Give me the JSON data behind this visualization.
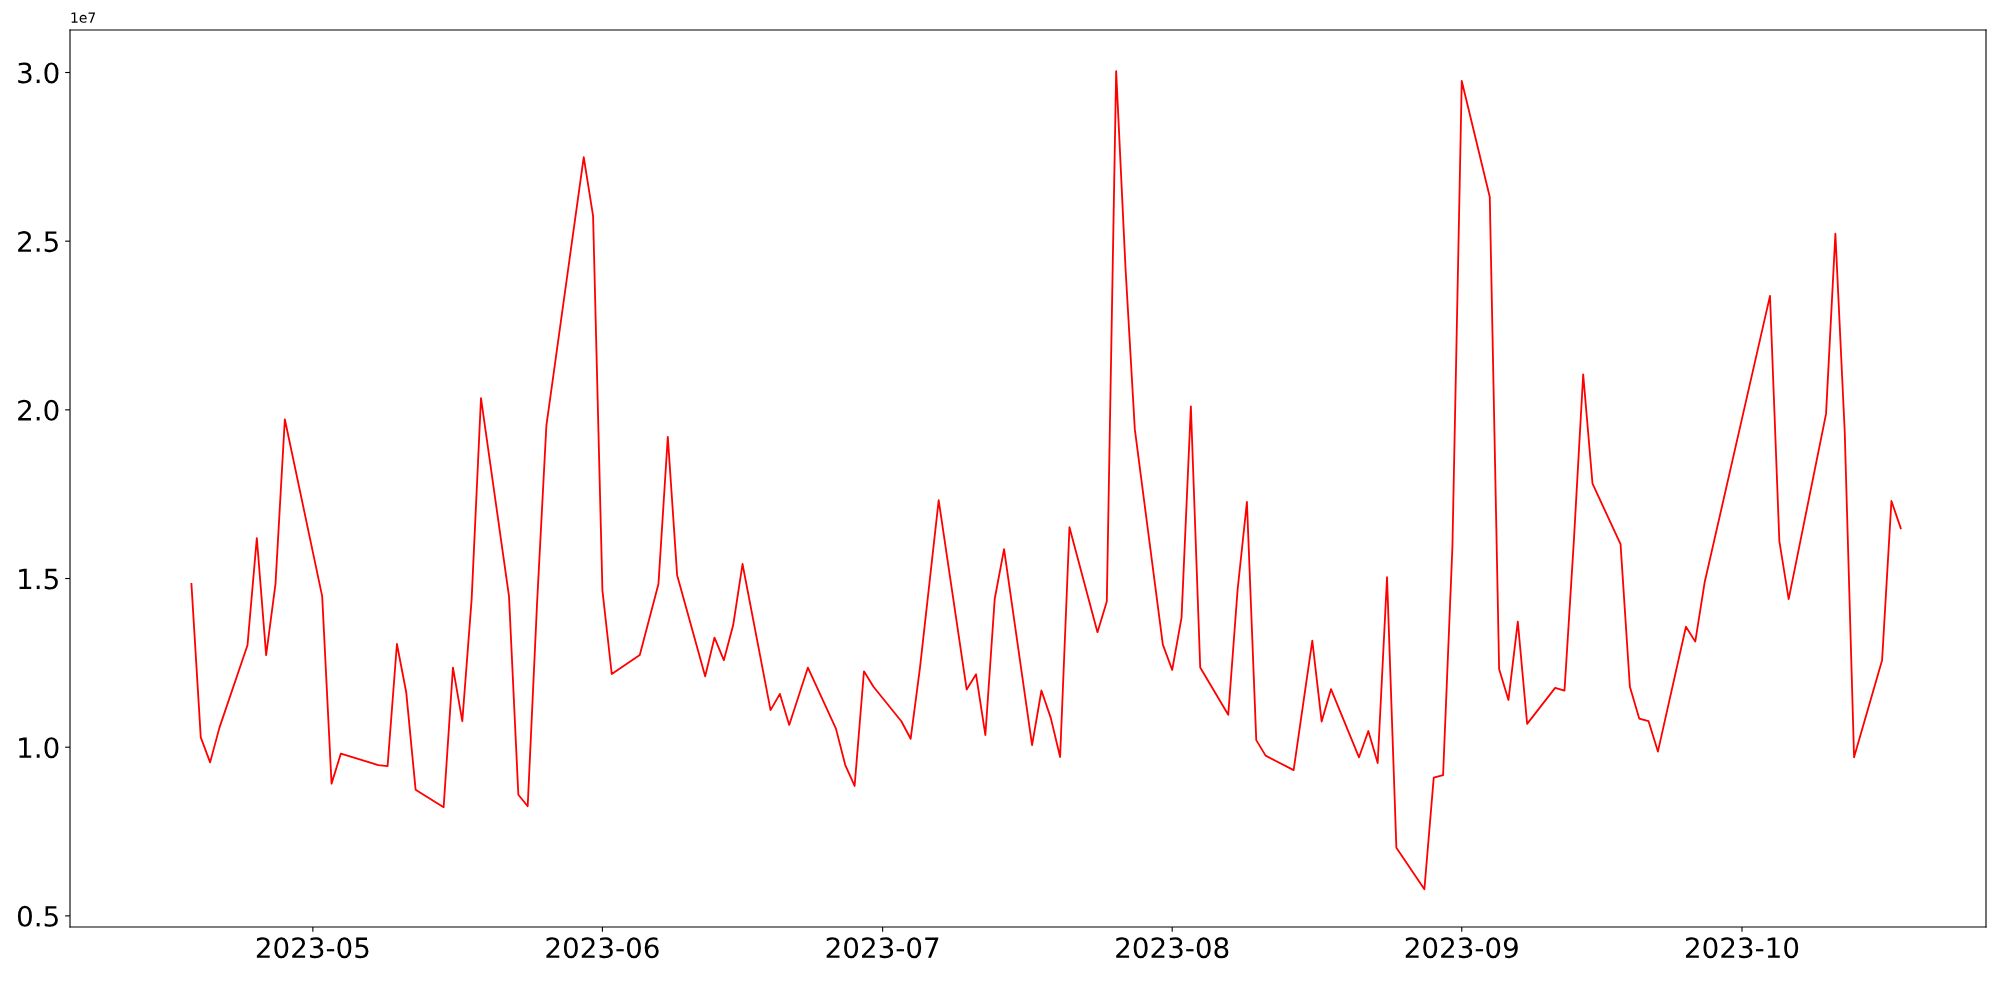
{
  "chart_data": {
    "type": "line",
    "x": [
      "2023-04-18",
      "2023-04-19",
      "2023-04-20",
      "2023-04-21",
      "2023-04-24",
      "2023-04-25",
      "2023-04-26",
      "2023-04-27",
      "2023-04-28",
      "2023-05-02",
      "2023-05-03",
      "2023-05-04",
      "2023-05-08",
      "2023-05-09",
      "2023-05-10",
      "2023-05-11",
      "2023-05-12",
      "2023-05-15",
      "2023-05-16",
      "2023-05-17",
      "2023-05-18",
      "2023-05-19",
      "2023-05-22",
      "2023-05-23",
      "2023-05-24",
      "2023-05-25",
      "2023-05-26",
      "2023-05-30",
      "2023-05-31",
      "2023-06-01",
      "2023-06-02",
      "2023-06-05",
      "2023-06-07",
      "2023-06-08",
      "2023-06-09",
      "2023-06-12",
      "2023-06-13",
      "2023-06-14",
      "2023-06-15",
      "2023-06-16",
      "2023-06-19",
      "2023-06-20",
      "2023-06-21",
      "2023-06-23",
      "2023-06-26",
      "2023-06-27",
      "2023-06-28",
      "2023-06-29",
      "2023-06-30",
      "2023-07-03",
      "2023-07-04",
      "2023-07-05",
      "2023-07-07",
      "2023-07-10",
      "2023-07-11",
      "2023-07-12",
      "2023-07-13",
      "2023-07-14",
      "2023-07-17",
      "2023-07-18",
      "2023-07-19",
      "2023-07-20",
      "2023-07-21",
      "2023-07-24",
      "2023-07-25",
      "2023-07-26",
      "2023-07-27",
      "2023-07-28",
      "2023-07-31",
      "2023-08-01",
      "2023-08-02",
      "2023-08-03",
      "2023-08-04",
      "2023-08-07",
      "2023-08-08",
      "2023-08-09",
      "2023-08-10",
      "2023-08-11",
      "2023-08-14",
      "2023-08-16",
      "2023-08-17",
      "2023-08-18",
      "2023-08-21",
      "2023-08-22",
      "2023-08-23",
      "2023-08-24",
      "2023-08-25",
      "2023-08-28",
      "2023-08-29",
      "2023-08-30",
      "2023-08-31",
      "2023-09-01",
      "2023-09-04",
      "2023-09-05",
      "2023-09-06",
      "2023-09-07",
      "2023-09-08",
      "2023-09-11",
      "2023-09-12",
      "2023-09-13",
      "2023-09-14",
      "2023-09-15",
      "2023-09-18",
      "2023-09-19",
      "2023-09-20",
      "2023-09-21",
      "2023-09-22",
      "2023-09-25",
      "2023-09-26",
      "2023-09-27",
      "2023-10-04",
      "2023-10-05",
      "2023-10-06",
      "2023-10-10",
      "2023-10-11",
      "2023-10-12",
      "2023-10-13",
      "2023-10-16",
      "2023-10-17",
      "2023-10-18"
    ],
    "series": [
      {
        "color": "#ff0000",
        "values": [
          1.484,
          1.029,
          0.955,
          1.058,
          1.302,
          1.62,
          1.273,
          1.484,
          1.972,
          1.447,
          0.892,
          0.981,
          0.947,
          0.944,
          1.306,
          1.162,
          0.874,
          0.822,
          1.236,
          1.077,
          1.439,
          2.035,
          1.447,
          0.859,
          0.825,
          1.425,
          1.953,
          2.749,
          2.575,
          1.465,
          1.217,
          1.273,
          1.484,
          1.92,
          1.51,
          1.21,
          1.325,
          1.258,
          1.362,
          1.543,
          1.11,
          1.158,
          1.066,
          1.236,
          1.055,
          0.947,
          0.885,
          1.225,
          1.18,
          1.077,
          1.025,
          1.236,
          1.732,
          1.171,
          1.216,
          1.036,
          1.44,
          1.587,
          1.006,
          1.168,
          1.087,
          0.971,
          1.652,
          1.341,
          1.432,
          3.004,
          2.421,
          1.942,
          1.304,
          1.229,
          1.384,
          2.01,
          1.236,
          1.096,
          1.466,
          1.727,
          1.021,
          0.975,
          0.932,
          1.316,
          1.076,
          1.172,
          0.97,
          1.048,
          0.953,
          1.504,
          0.702,
          0.579,
          0.91,
          0.917,
          1.594,
          2.975,
          2.631,
          1.232,
          1.14,
          1.372,
          1.069,
          1.176,
          1.168,
          1.611,
          2.105,
          1.781,
          1.602,
          1.179,
          1.085,
          1.077,
          0.987,
          1.357,
          1.313,
          1.488,
          2.338,
          1.611,
          1.439,
          1.988,
          2.522,
          1.935,
          0.97,
          1.258,
          1.73,
          1.649
        ]
      }
    ],
    "xlim": [
      "2023-04-05",
      "2023-10-27T03:00"
    ],
    "xticks": [
      {
        "value": "2023-05-01",
        "label": "2023-05"
      },
      {
        "value": "2023-06-01",
        "label": "2023-06"
      },
      {
        "value": "2023-07-01",
        "label": "2023-07"
      },
      {
        "value": "2023-08-01",
        "label": "2023-08"
      },
      {
        "value": "2023-09-01",
        "label": "2023-09"
      },
      {
        "value": "2023-10-01",
        "label": "2023-10"
      }
    ],
    "ylim": [
      0.467,
      3.126
    ],
    "yticks": [
      {
        "value": 0.5,
        "label": "0.5"
      },
      {
        "value": 1,
        "label": "1.0"
      },
      {
        "value": 1.5,
        "label": "1.5"
      },
      {
        "value": 2,
        "label": "2.0"
      },
      {
        "value": 2.5,
        "label": "2.5"
      },
      {
        "value": 3,
        "label": "3.0"
      }
    ],
    "annotations": [
      "1e7"
    ],
    "grid": false
  }
}
